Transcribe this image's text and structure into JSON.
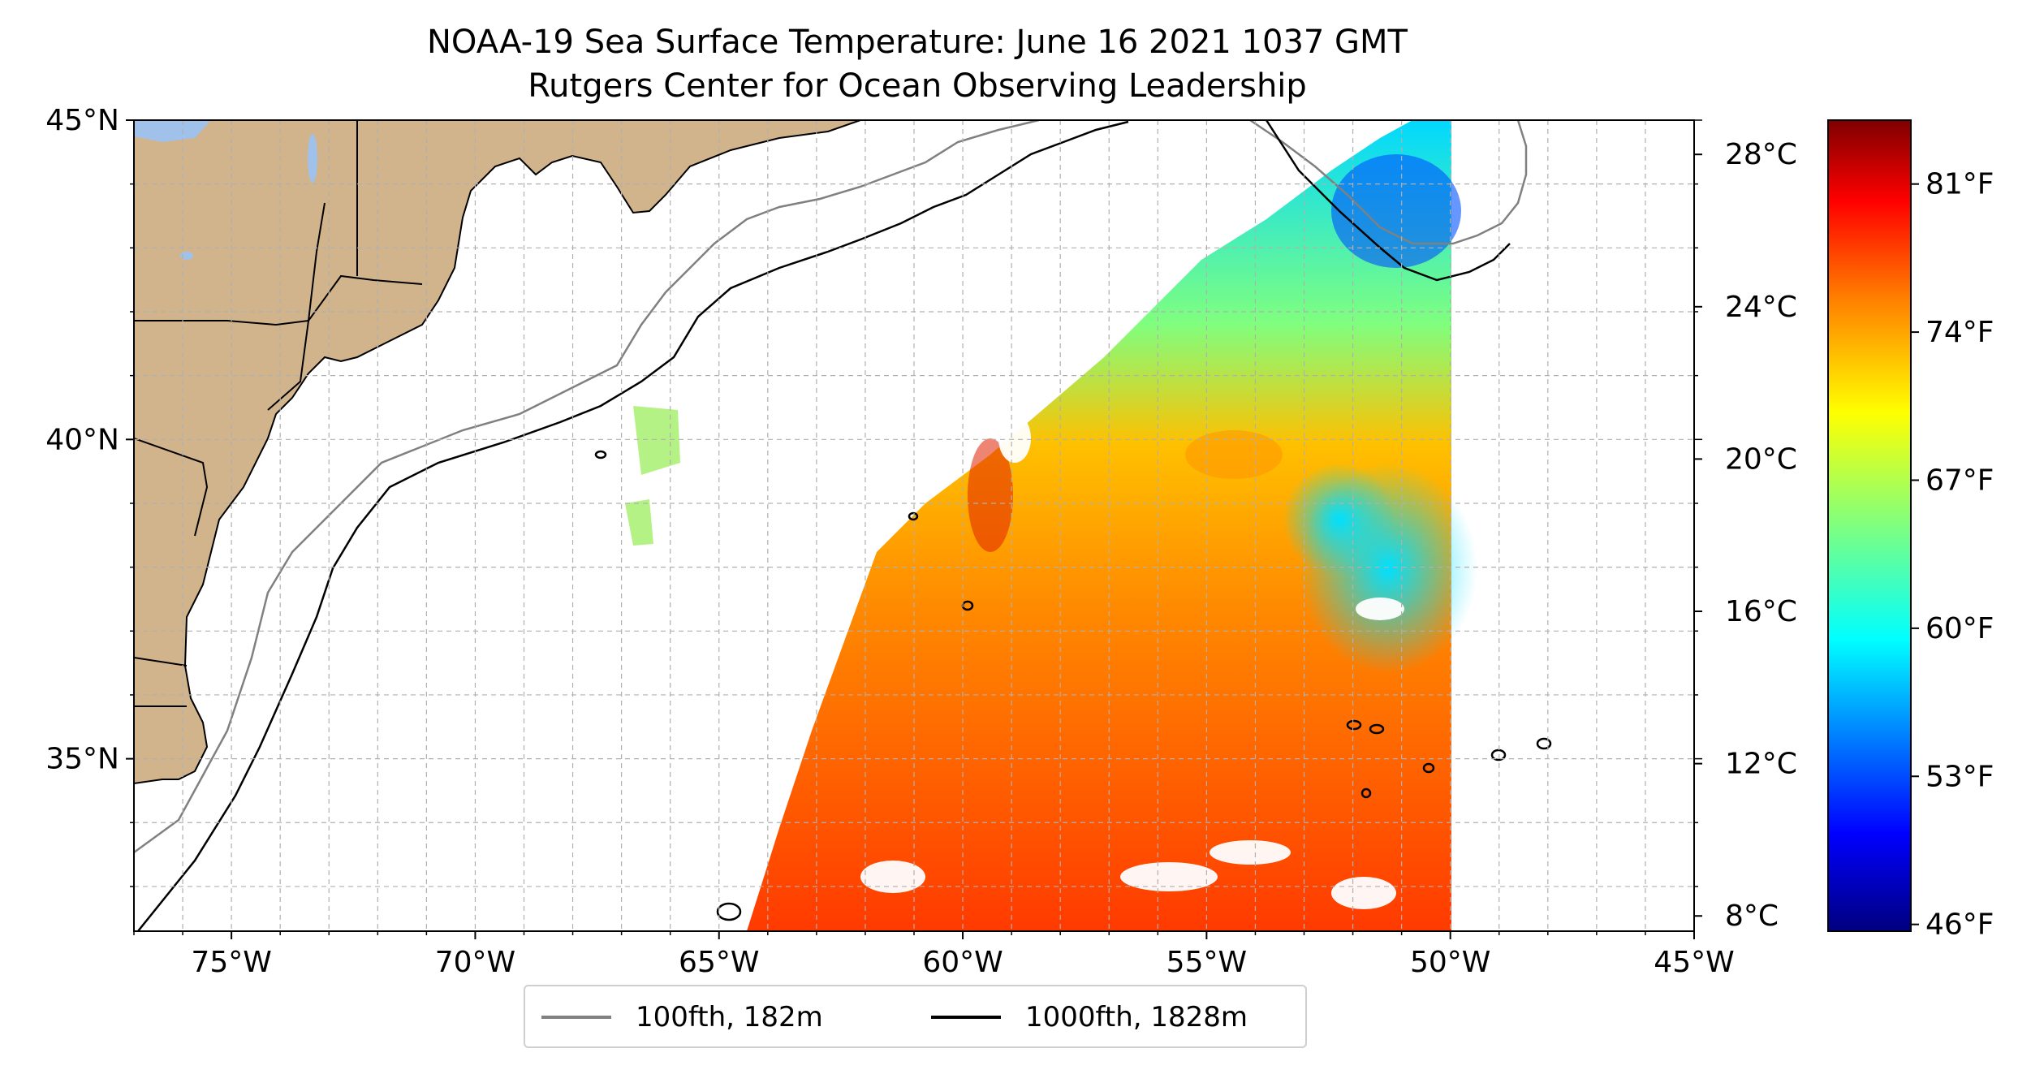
{
  "title": {
    "line1": "NOAA-19 Sea Surface Temperature: June 16 2021 1037 GMT",
    "line2": "Rutgers Center for Ocean Observing Leadership"
  },
  "map": {
    "lon_range": [
      -77,
      -45
    ],
    "lat_range": [
      32.3,
      45
    ],
    "lon_ticks": [
      "75°W",
      "70°W",
      "65°W",
      "60°W",
      "55°W",
      "50°W",
      "45°W"
    ],
    "lat_ticks": [
      "45°N",
      "40°N",
      "35°N"
    ],
    "gridlines": "dashed, 1° spacing",
    "data_east_edge": "50°W"
  },
  "colorbar": {
    "celsius_ticks": [
      "28°C",
      "24°C",
      "20°C",
      "16°C",
      "12°C",
      "8°C"
    ],
    "fahrenheit_ticks": [
      "81°F",
      "74°F",
      "67°F",
      "60°F",
      "53°F",
      "46°F"
    ],
    "colormap": "jet",
    "colors": [
      "#00007f",
      "#0000ff",
      "#007fff",
      "#00ffff",
      "#7fff7f",
      "#ffff00",
      "#ff7f00",
      "#ff0000",
      "#7f0000"
    ]
  },
  "legend": {
    "items": [
      {
        "label": "100fth, 182m",
        "color": "#808080"
      },
      {
        "label": "1000fth, 1828m",
        "color": "#000000"
      }
    ]
  },
  "colors": {
    "land": "#d2b48c",
    "lakes": "#9fc1ea",
    "grid": "#b0b0b0"
  }
}
